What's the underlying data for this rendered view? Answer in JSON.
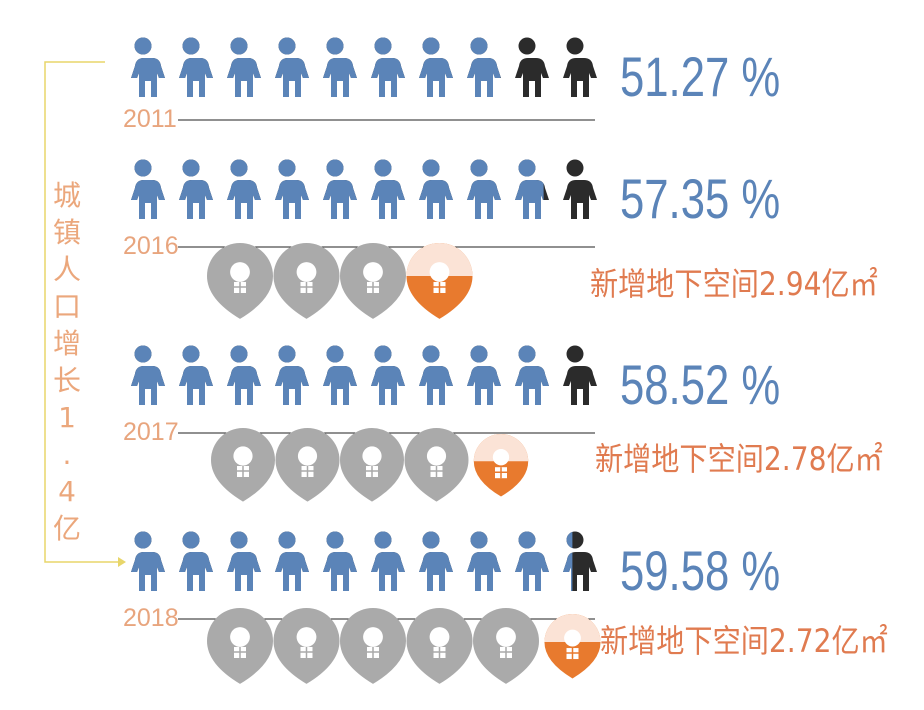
{
  "side_label": "城镇人口增长1.4亿",
  "rows": [
    {
      "year": "2011",
      "rate": "51.27 %"
    },
    {
      "year": "2016",
      "rate": "57.35 %",
      "space": "新增地下空间2.94亿㎡"
    },
    {
      "year": "2017",
      "rate": "58.52 %",
      "space": "新增地下空间2.78亿㎡"
    },
    {
      "year": "2018",
      "rate": "59.58 %",
      "space": "新增地下空间2.72亿㎡"
    }
  ]
}
